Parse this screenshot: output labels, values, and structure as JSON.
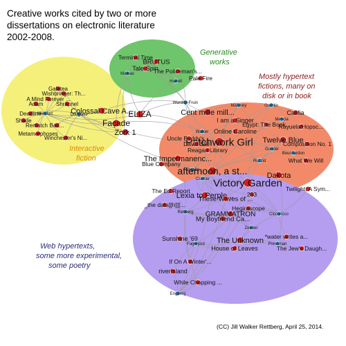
{
  "title_lines": [
    "Creative works cited by two or more",
    "dissertations on electronic literature",
    "2002-2008."
  ],
  "credit": "(CC) Jill Walker Rettberg, April 25, 2014.",
  "colors": {
    "work_node": "#d11f1f",
    "dissertation_node": "#2f7fb0",
    "edge": "#9a9a9a",
    "interactive_fill": "#f5f07a",
    "generative_fill": "#6fc56b",
    "hypertext_fill": "#f28a6a",
    "web_fill": "#b59df0",
    "interactive_text": "#d98b0a",
    "generative_text": "#2a8a22",
    "hypertext_text": "#8b1f1f",
    "web_text": "#2b2d7a"
  },
  "clusters": [
    {
      "id": "interactive",
      "label": [
        "Interactive",
        "fiction"
      ]
    },
    {
      "id": "generative",
      "label": [
        "Generative",
        "works"
      ]
    },
    {
      "id": "hypertext",
      "label": [
        "Mostly hypertext",
        "fictions, many on",
        "disk or in book"
      ]
    },
    {
      "id": "web",
      "label": [
        "Web hypertexts,",
        "some more experimental,",
        "some poetry"
      ]
    }
  ],
  "nodes": [
    {
      "id": "terminal-time",
      "label": "Terminal Time",
      "kind": "work"
    },
    {
      "id": "brutus",
      "label": "BRUTUS",
      "kind": "work"
    },
    {
      "id": "tale-spin",
      "label": "Tale-Spin",
      "kind": "work"
    },
    {
      "id": "policemans",
      "label": "The Policeman's...",
      "kind": "work"
    },
    {
      "id": "mateas",
      "label": "Mateas",
      "kind": "dissertation"
    },
    {
      "id": "harrell",
      "label": "Harrell",
      "kind": "dissertation"
    },
    {
      "id": "pale-fire",
      "label": "Pale Fire",
      "kind": "work"
    },
    {
      "id": "galatea",
      "label": "Galatea",
      "kind": "work"
    },
    {
      "id": "wishbringer",
      "label": "Wishbringer: Th...",
      "kind": "work"
    },
    {
      "id": "mind-forever",
      "label": "A Mind Forever ...",
      "kind": "work"
    },
    {
      "id": "shrapnel",
      "label": "Shrapnel",
      "kind": "work"
    },
    {
      "id": "adam",
      "label": "Adam",
      "kind": "work"
    },
    {
      "id": "deadline",
      "label": "Deadline",
      "kind": "work"
    },
    {
      "id": "montfort",
      "label": "Montfort",
      "kind": "dissertation"
    },
    {
      "id": "douglass",
      "label": "Douglass",
      "kind": "dissertation"
    },
    {
      "id": "colossal-cave",
      "label": "Colossal Cave A...",
      "kind": "work"
    },
    {
      "id": "shade",
      "label": "Shade",
      "kind": "work"
    },
    {
      "id": "rematch",
      "label": "Rematch",
      "kind": "work"
    },
    {
      "id": "bad-machine",
      "label": "Bad...",
      "kind": "work"
    },
    {
      "id": "facade",
      "label": "Façade",
      "kind": "work"
    },
    {
      "id": "eliza",
      "label": "ELIZA",
      "kind": "work"
    },
    {
      "id": "metamorphoses",
      "label": "Metamorphoses",
      "kind": "work"
    },
    {
      "id": "winchester",
      "label": "Winchester's Ni...",
      "kind": "work"
    },
    {
      "id": "zork",
      "label": "Zork 1",
      "kind": "work"
    },
    {
      "id": "wardrip-fruin",
      "label": "Wardrip-Fruin",
      "kind": "dissertation"
    },
    {
      "id": "maloney",
      "label": "Maloney",
      "kind": "dissertation"
    },
    {
      "id": "guertin",
      "label": "Guertin",
      "kind": "dissertation"
    },
    {
      "id": "cent-mille",
      "label": "Cent mille mill...",
      "kind": "work"
    },
    {
      "id": "califia",
      "label": "Califia",
      "kind": "work"
    },
    {
      "id": "i-am-singer",
      "label": "I am a Singer",
      "kind": "work"
    },
    {
      "id": "egypt",
      "label": "Egypt: The Book...",
      "kind": "work"
    },
    {
      "id": "rayuela",
      "label": "Rayuela/Hopsc...",
      "kind": "work"
    },
    {
      "id": "mencia",
      "label": "Mencia",
      "kind": "dissertation"
    },
    {
      "id": "walker",
      "label": "Walker",
      "kind": "dissertation"
    },
    {
      "id": "online-caroline",
      "label": "Online Caroline",
      "kind": "work"
    },
    {
      "id": "patchwork-girl",
      "label": "Patchwork Girl",
      "kind": "work"
    },
    {
      "id": "twelve-blue",
      "label": "Twelve Blue",
      "kind": "work"
    },
    {
      "id": "composition",
      "label": "Composition No. 1",
      "kind": "work"
    },
    {
      "id": "uncle-buddy",
      "label": "Uncle Buddy's ...",
      "kind": "work"
    },
    {
      "id": "david-still",
      "label": "David Still",
      "kind": "work"
    },
    {
      "id": "reagan-library",
      "label": "Reagan Library",
      "kind": "work"
    },
    {
      "id": "gunder",
      "label": "Gunder",
      "kind": "dissertation"
    },
    {
      "id": "bouchardon",
      "label": "Bouchardon",
      "kind": "dissertation"
    },
    {
      "id": "what-we-will",
      "label": "What We Will",
      "kind": "work"
    },
    {
      "id": "impermanence",
      "label": "The Impermanenc...",
      "kind": "work"
    },
    {
      "id": "blue-company",
      "label": "Blue Company",
      "kind": "work"
    },
    {
      "id": "ensslin",
      "label": "Ensslin",
      "kind": "dissertation"
    },
    {
      "id": "ruzzid",
      "label": "Ruzzid",
      "kind": "dissertation"
    },
    {
      "id": "afternoon",
      "label": "afternoon, a st...",
      "kind": "work"
    },
    {
      "id": "dakota",
      "label": "Dakota",
      "kind": "work"
    },
    {
      "id": "cramer",
      "label": "Cramer",
      "kind": "dissertation"
    },
    {
      "id": "victory-garden",
      "label": "Victory Garden",
      "kind": "work"
    },
    {
      "id": "twilight",
      "label": "Twilight: A Sym...",
      "kind": "work"
    },
    {
      "id": "ed-report",
      "label": "The Ed Report",
      "kind": "work"
    },
    {
      "id": "lexia",
      "label": "Lexia to Perple...",
      "kind": "work"
    },
    {
      "id": "n-253",
      "label": "253",
      "kind": "work"
    },
    {
      "id": "these-waves",
      "label": "These Waves of ...",
      "kind": "work"
    },
    {
      "id": "data-h",
      "label": "_the data][h]][...",
      "kind": "work"
    },
    {
      "id": "rettberg",
      "label": "Rettberg",
      "kind": "dissertation"
    },
    {
      "id": "hegirascope",
      "label": "Hegirascope",
      "kind": "work"
    },
    {
      "id": "grammatron",
      "label": "GRAMMATRON",
      "kind": "work"
    },
    {
      "id": "my-boyfriend",
      "label": "My Boyfriend Ca...",
      "kind": "work"
    },
    {
      "id": "ciccoricco",
      "label": "Ciccoricco",
      "kind": "dissertation"
    },
    {
      "id": "zeeber",
      "label": "Zeeber",
      "kind": "dissertation"
    },
    {
      "id": "sunshine",
      "label": "Sunshine '69",
      "kind": "work"
    },
    {
      "id": "the-unknown",
      "label": "The Unknown",
      "kind": "work"
    },
    {
      "id": "water-writes",
      "label": "*water writes a...",
      "kind": "work"
    },
    {
      "id": "fagerjord",
      "label": "Fagerjord",
      "kind": "dissertation"
    },
    {
      "id": "house-leaves",
      "label": "House of Leaves",
      "kind": "work"
    },
    {
      "id": "pressman",
      "label": "Pressman",
      "kind": "dissertation"
    },
    {
      "id": "jews-daughter",
      "label": "The Jew's Daugh...",
      "kind": "work"
    },
    {
      "id": "winters",
      "label": "If On A Winter'...",
      "kind": "work"
    },
    {
      "id": "riverisland",
      "label": "riverIsland",
      "kind": "work"
    },
    {
      "id": "chopping",
      "label": "While Chopping ...",
      "kind": "work"
    },
    {
      "id": "engberg",
      "label": "Engberg",
      "kind": "dissertation"
    }
  ],
  "edges": [
    [
      "mateas",
      "terminal-time"
    ],
    [
      "mateas",
      "brutus"
    ],
    [
      "mateas",
      "tale-spin"
    ],
    [
      "mateas",
      "facade"
    ],
    [
      "mateas",
      "eliza"
    ],
    [
      "mateas",
      "zork"
    ],
    [
      "harrell",
      "brutus"
    ],
    [
      "harrell",
      "tale-spin"
    ],
    [
      "harrell",
      "policemans"
    ],
    [
      "harrell",
      "pale-fire"
    ],
    [
      "harrell",
      "terminal-time"
    ],
    [
      "harrell",
      "eliza"
    ],
    [
      "montfort",
      "galatea"
    ],
    [
      "montfort",
      "wishbringer"
    ],
    [
      "montfort",
      "mind-forever"
    ],
    [
      "montfort",
      "shrapnel"
    ],
    [
      "montfort",
      "adam"
    ],
    [
      "montfort",
      "deadline"
    ],
    [
      "montfort",
      "shade"
    ],
    [
      "montfort",
      "rematch"
    ],
    [
      "montfort",
      "metamorphoses"
    ],
    [
      "montfort",
      "winchester"
    ],
    [
      "montfort",
      "colossal-cave"
    ],
    [
      "montfort",
      "zork"
    ],
    [
      "montfort",
      "eliza"
    ],
    [
      "montfort",
      "facade"
    ],
    [
      "douglass",
      "galatea"
    ],
    [
      "douglass",
      "shrapnel"
    ],
    [
      "douglass",
      "colossal-cave"
    ],
    [
      "douglass",
      "bad-machine"
    ],
    [
      "douglass",
      "facade"
    ],
    [
      "douglass",
      "zork"
    ],
    [
      "douglass",
      "deadline"
    ],
    [
      "douglass",
      "winchester"
    ],
    [
      "douglass",
      "patchwork-girl"
    ],
    [
      "douglass",
      "afternoon"
    ],
    [
      "wardrip-fruin",
      "eliza"
    ],
    [
      "wardrip-fruin",
      "tale-spin"
    ],
    [
      "wardrip-fruin",
      "terminal-time"
    ],
    [
      "wardrip-fruin",
      "policemans"
    ],
    [
      "wardrip-fruin",
      "cent-mille"
    ],
    [
      "wardrip-fruin",
      "patchwork-girl"
    ],
    [
      "wardrip-fruin",
      "afternoon"
    ],
    [
      "wardrip-fruin",
      "victory-garden"
    ],
    [
      "wardrip-fruin",
      "colossal-cave"
    ],
    [
      "maloney",
      "cent-mille"
    ],
    [
      "maloney",
      "patchwork-girl"
    ],
    [
      "maloney",
      "afternoon"
    ],
    [
      "maloney",
      "twelve-blue"
    ],
    [
      "guertin",
      "califia"
    ],
    [
      "guertin",
      "patchwork-girl"
    ],
    [
      "guertin",
      "afternoon"
    ],
    [
      "guertin",
      "victory-garden"
    ],
    [
      "mencia",
      "califia"
    ],
    [
      "mencia",
      "rayuela"
    ],
    [
      "mencia",
      "egypt"
    ],
    [
      "mencia",
      "composition"
    ],
    [
      "mencia",
      "afternoon"
    ],
    [
      "walker",
      "i-am-singer"
    ],
    [
      "walker",
      "online-caroline"
    ],
    [
      "walker",
      "patchwork-girl"
    ],
    [
      "walker",
      "afternoon"
    ],
    [
      "walker",
      "uncle-buddy"
    ],
    [
      "walker",
      "facade"
    ],
    [
      "walker",
      "eliza"
    ],
    [
      "gunder",
      "twelve-blue"
    ],
    [
      "gunder",
      "patchwork-girl"
    ],
    [
      "gunder",
      "afternoon"
    ],
    [
      "gunder",
      "victory-garden"
    ],
    [
      "bouchardon",
      "what-we-will"
    ],
    [
      "bouchardon",
      "composition"
    ],
    [
      "bouchardon",
      "twelve-blue"
    ],
    [
      "bouchardon",
      "afternoon"
    ],
    [
      "bouchardon",
      "patchwork-girl"
    ],
    [
      "ensslin",
      "impermanence"
    ],
    [
      "ensslin",
      "patchwork-girl"
    ],
    [
      "ensslin",
      "afternoon"
    ],
    [
      "ensslin",
      "victory-garden"
    ],
    [
      "ensslin",
      "david-still"
    ],
    [
      "ensslin",
      "reagan-library"
    ],
    [
      "ensslin",
      "blue-company"
    ],
    [
      "ensslin",
      "lexia"
    ],
    [
      "ruzzid",
      "patchwork-girl"
    ],
    [
      "ruzzid",
      "afternoon"
    ],
    [
      "ruzzid",
      "dakota"
    ],
    [
      "ruzzid",
      "twelve-blue"
    ],
    [
      "ruzzid",
      "these-waves"
    ],
    [
      "cramer",
      "afternoon"
    ],
    [
      "cramer",
      "victory-garden"
    ],
    [
      "cramer",
      "n-253"
    ],
    [
      "cramer",
      "these-waves"
    ],
    [
      "cramer",
      "lexia"
    ],
    [
      "cramer",
      "grammatron"
    ],
    [
      "rettberg",
      "ed-report"
    ],
    [
      "rettberg",
      "data-h"
    ],
    [
      "rettberg",
      "lexia"
    ],
    [
      "rettberg",
      "grammatron"
    ],
    [
      "rettberg",
      "my-boyfriend"
    ],
    [
      "rettberg",
      "hegirascope"
    ],
    [
      "rettberg",
      "victory-garden"
    ],
    [
      "rettberg",
      "impermanence"
    ],
    [
      "rettberg",
      "winters"
    ],
    [
      "rettberg",
      "chopping"
    ],
    [
      "ciccoricco",
      "hegirascope"
    ],
    [
      "ciccoricco",
      "grammatron"
    ],
    [
      "ciccoricco",
      "the-unknown"
    ],
    [
      "ciccoricco",
      "water-writes"
    ],
    [
      "ciccoricco",
      "twilight"
    ],
    [
      "ciccoricco",
      "victory-garden"
    ],
    [
      "ciccoricco",
      "afternoon"
    ],
    [
      "ciccoricco",
      "these-waves"
    ],
    [
      "zeeber",
      "grammatron"
    ],
    [
      "zeeber",
      "my-boyfriend"
    ],
    [
      "zeeber",
      "the-unknown"
    ],
    [
      "zeeber",
      "hegirascope"
    ],
    [
      "fagerjord",
      "sunshine"
    ],
    [
      "fagerjord",
      "the-unknown"
    ],
    [
      "fagerjord",
      "house-leaves"
    ],
    [
      "fagerjord",
      "grammatron"
    ],
    [
      "fagerjord",
      "winters"
    ],
    [
      "fagerjord",
      "riverisland"
    ],
    [
      "pressman",
      "jews-daughter"
    ],
    [
      "pressman",
      "the-unknown"
    ],
    [
      "pressman",
      "water-writes"
    ],
    [
      "pressman",
      "house-leaves"
    ],
    [
      "pressman",
      "dakota"
    ],
    [
      "engberg",
      "chopping"
    ],
    [
      "engberg",
      "riverisland"
    ],
    [
      "engberg",
      "these-waves"
    ],
    [
      "engberg",
      "n-253"
    ],
    [
      "engberg",
      "afternoon"
    ],
    [
      "engberg",
      "victory-garden"
    ]
  ]
}
